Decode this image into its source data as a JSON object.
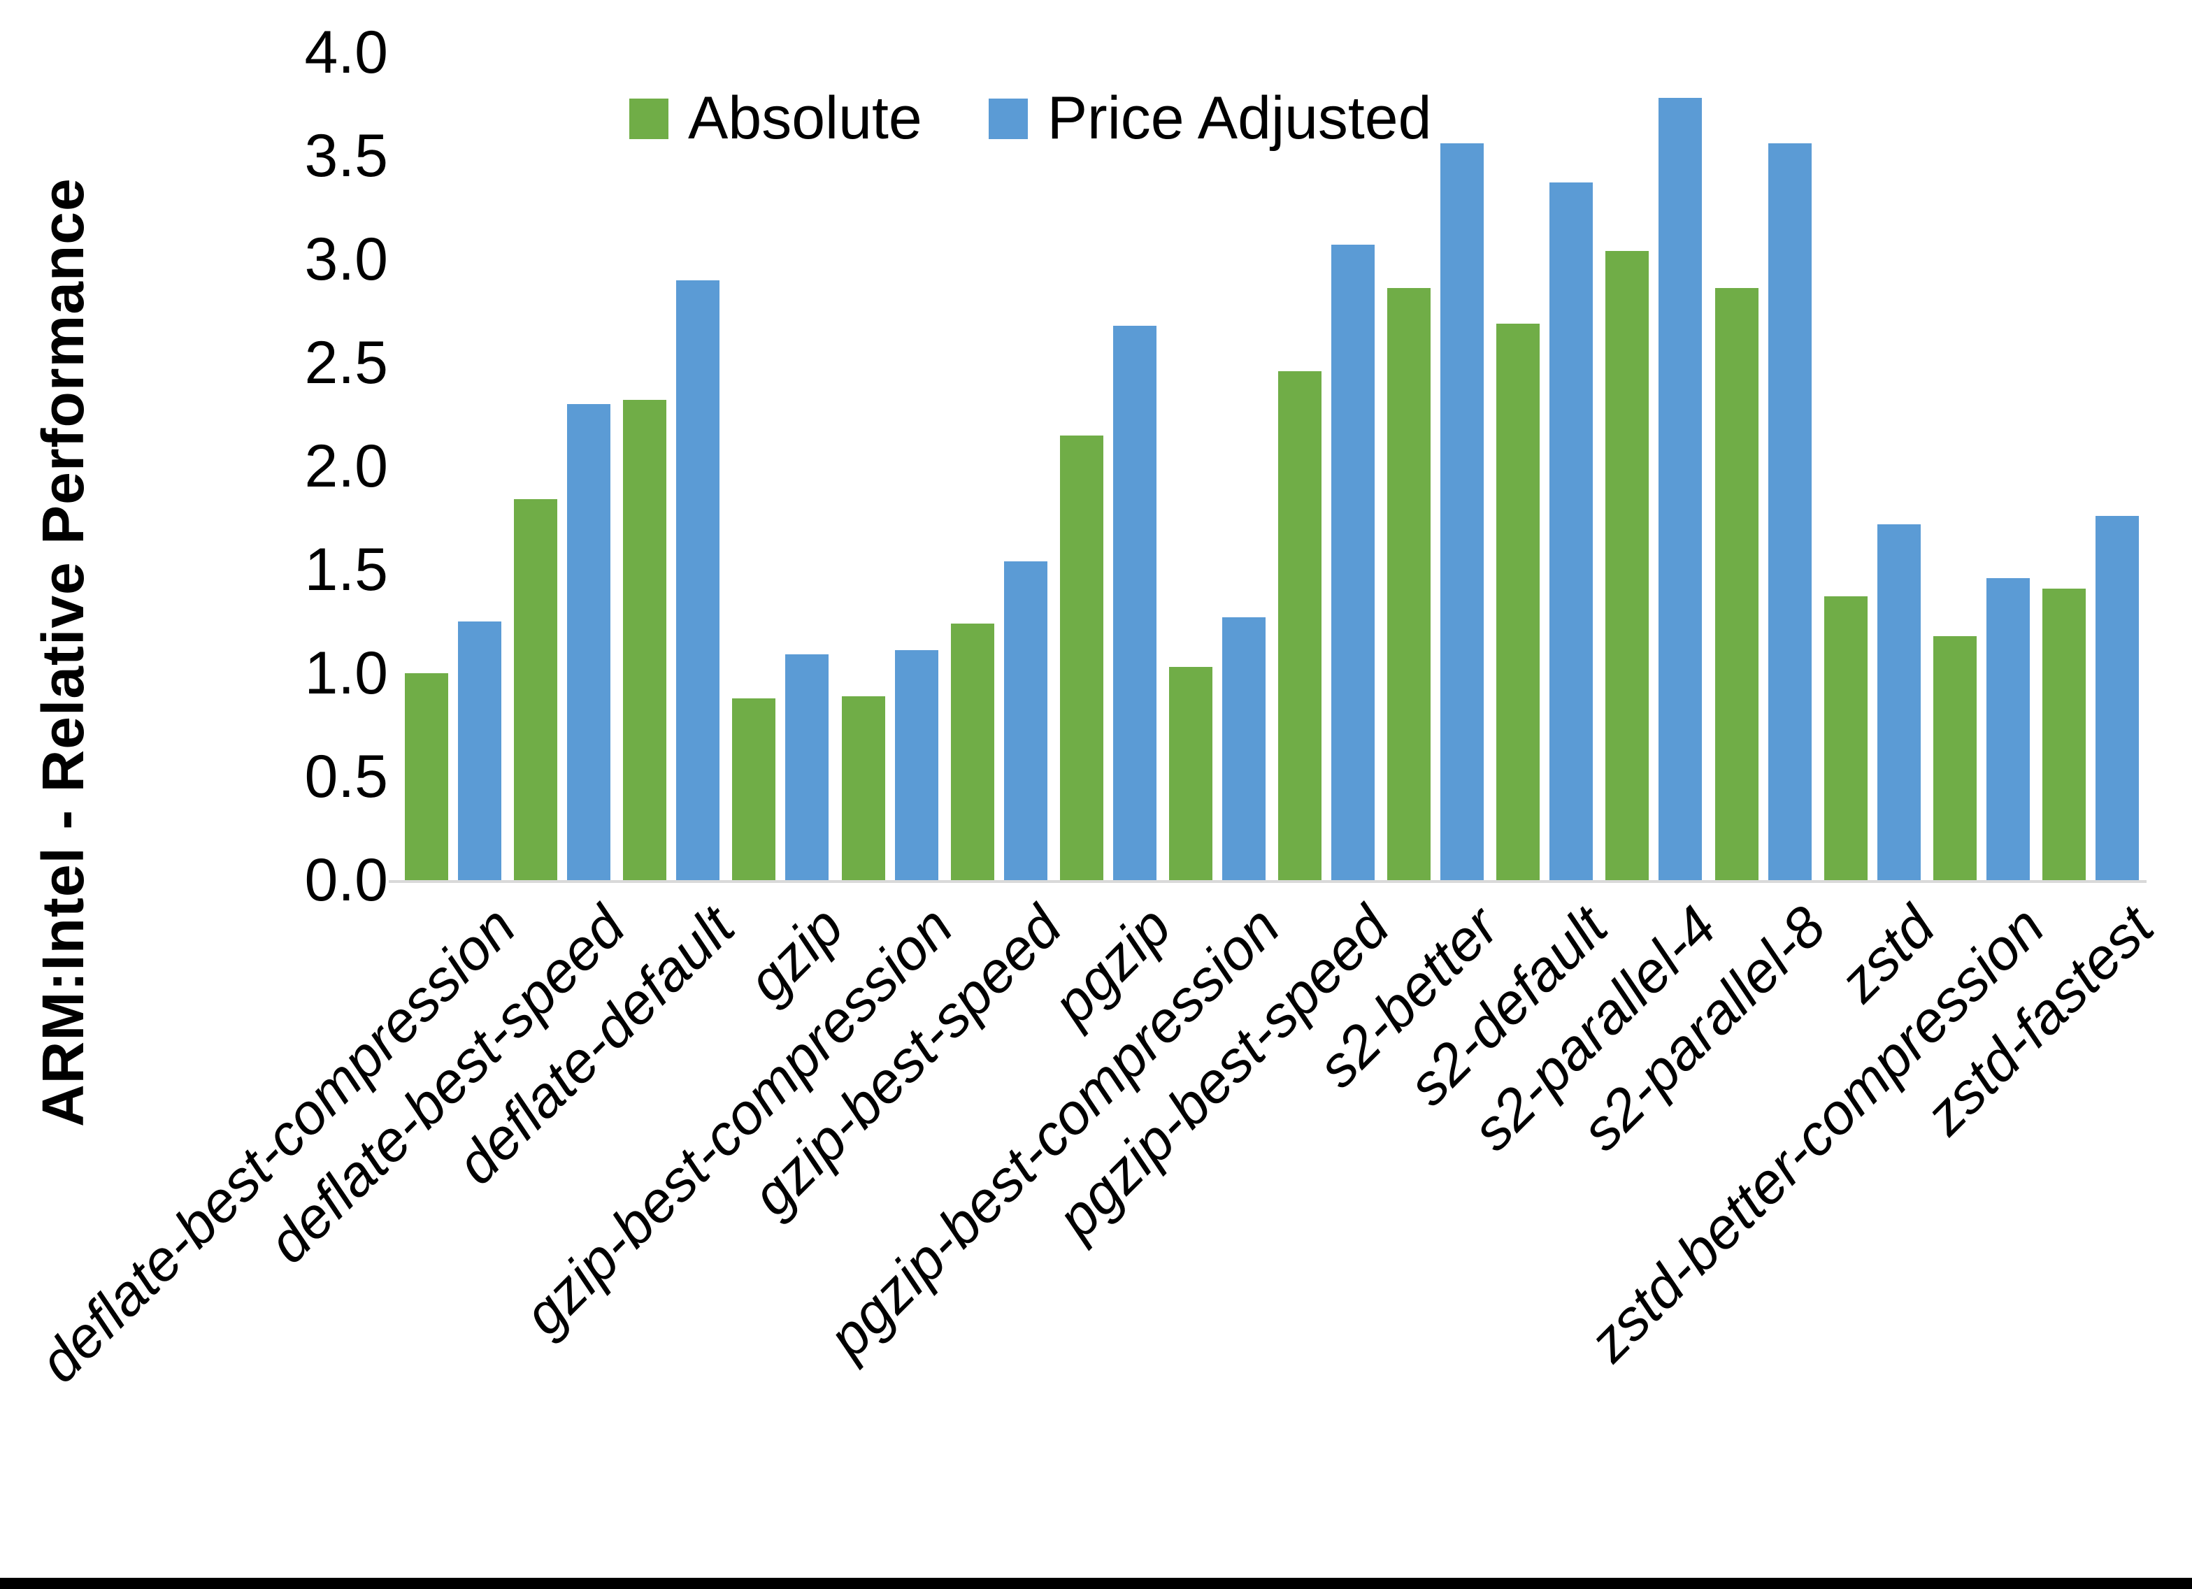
{
  "figure": {
    "background": "#FFFFFF",
    "bottom_bar_color": "#000000",
    "axis_line_color": "#D9D9D9",
    "text_color": "#000000"
  },
  "chart_data": {
    "type": "bar",
    "title": "",
    "ylabel": "ARM:Intel - Relative Performance",
    "xlabel": "",
    "ylim": [
      0.0,
      4.0
    ],
    "ytick_labels": [
      "0.0",
      "0.5",
      "1.0",
      "1.5",
      "2.0",
      "2.5",
      "3.0",
      "3.5",
      "4.0"
    ],
    "grid": false,
    "legend_position": "top-center",
    "categories": [
      "deflate-best-compression",
      "deflate-best-speed",
      "deflate-default",
      "gzip",
      "gzip-best-compression",
      "gzip-best-speed",
      "pgzip",
      "pgzip-best-compression",
      "pgzip-best-speed",
      "s2-better",
      "s2-default",
      "s2-parallel-4",
      "s2-parallel-8",
      "zstd",
      "zstd-better-compression",
      "zstd-fastest"
    ],
    "series": [
      {
        "name": "Absolute",
        "color": "#70AD47",
        "values": [
          1.0,
          1.84,
          2.32,
          0.88,
          0.89,
          1.24,
          2.15,
          1.03,
          2.46,
          2.86,
          2.69,
          3.04,
          2.86,
          1.37,
          1.18,
          1.41
        ]
      },
      {
        "name": "Price Adjusted",
        "color": "#5B9BD5",
        "values": [
          1.25,
          2.3,
          2.9,
          1.09,
          1.11,
          1.54,
          2.68,
          1.27,
          3.07,
          3.56,
          3.37,
          3.78,
          3.56,
          1.72,
          1.46,
          1.76
        ]
      }
    ]
  }
}
